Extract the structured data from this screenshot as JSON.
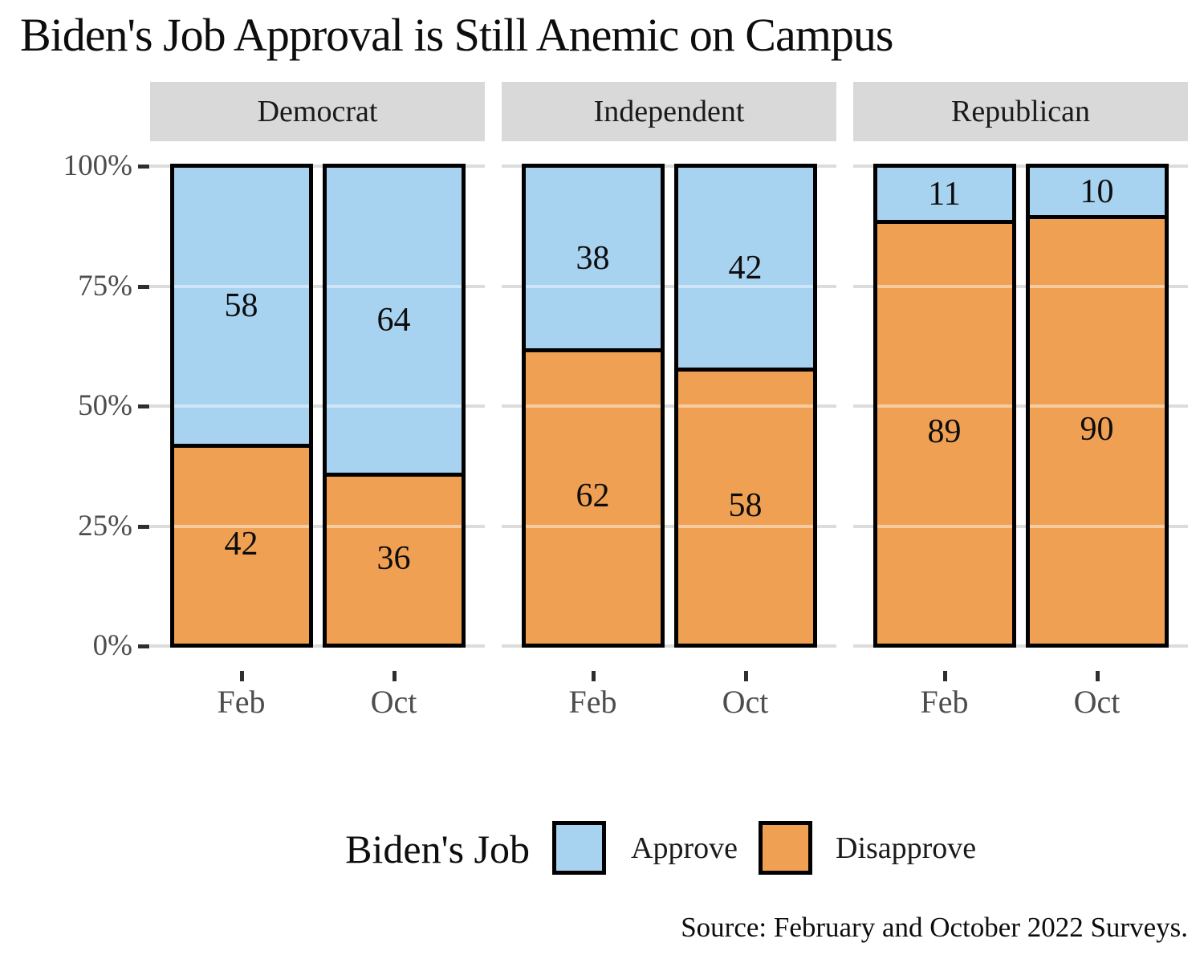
{
  "title": "Biden's Job Approval is Still Anemic on Campus",
  "caption": "Source: February and October 2022 Surveys.",
  "colors": {
    "approve": "#A7D2F0",
    "disapprove": "#F0A053",
    "bar_border": "#000000",
    "strip_background": "#D9D9D9",
    "gridline": "#DCDCDC",
    "axis_text": "#4D4D4D",
    "tick_mark": "#2E2E2E",
    "text": "#0d0d0d"
  },
  "legend": {
    "title": "Biden's Job",
    "items": [
      {
        "label": "Approve",
        "color_key": "approve"
      },
      {
        "label": "Disapprove",
        "color_key": "disapprove"
      }
    ]
  },
  "y_axis": {
    "tick_values": [
      0,
      25,
      50,
      75,
      100
    ],
    "tick_labels": [
      "0%",
      "25%",
      "50%",
      "75%",
      "100%"
    ]
  },
  "x_axis": {
    "categories": [
      "Feb",
      "Oct"
    ]
  },
  "chart_data": {
    "type": "bar",
    "stacked": true,
    "percent_scale": true,
    "title": "Biden's Job Approval is Still Anemic on Campus",
    "legend_title": "Biden's Job",
    "series_names": [
      "Approve",
      "Disapprove"
    ],
    "categories": [
      "Feb",
      "Oct"
    ],
    "ylim": [
      0,
      100
    ],
    "grid": true,
    "legend_position": "bottom",
    "facets": [
      {
        "label": "Democrat",
        "bars": [
          {
            "x": "Feb",
            "approve": 58,
            "disapprove": 42
          },
          {
            "x": "Oct",
            "approve": 64,
            "disapprove": 36
          }
        ]
      },
      {
        "label": "Independent",
        "bars": [
          {
            "x": "Feb",
            "approve": 38,
            "disapprove": 62
          },
          {
            "x": "Oct",
            "approve": 42,
            "disapprove": 58
          }
        ]
      },
      {
        "label": "Republican",
        "bars": [
          {
            "x": "Feb",
            "approve": 11,
            "disapprove": 89
          },
          {
            "x": "Oct",
            "approve": 10,
            "disapprove": 90
          }
        ]
      }
    ]
  }
}
